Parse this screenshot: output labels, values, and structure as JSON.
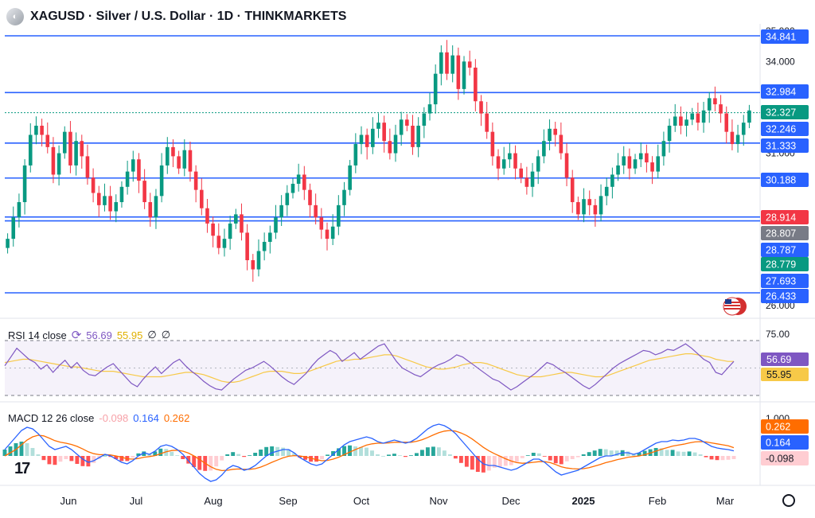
{
  "header": {
    "title": "XAGUSD · Silver / U.S. Dollar · 1D · THINKMARKETS",
    "symbol_icon": "silver-coin-icon"
  },
  "rsi": {
    "label": "RSI 14 close",
    "value": "56.69",
    "ma_value": "55.95",
    "extra1": "∅",
    "extra2": "∅",
    "axis_upper": "75.00",
    "badge_value": "56.69",
    "badge_ma": "55.95",
    "line_color": "#7e57c2",
    "ma_color": "#f7c948"
  },
  "macd": {
    "label": "MACD 12 26 close",
    "hist": "-0.098",
    "macd": "0.164",
    "signal": "0.262",
    "axis_top": "1.000",
    "macd_color": "#2962ff",
    "signal_color": "#ff6d00"
  },
  "chart_data": {
    "type": "candlestick",
    "price_axis_ticks": [
      "35.000",
      "34.000",
      "31.000",
      "26.000"
    ],
    "levels": [
      {
        "value": 34.841,
        "label": "34.841",
        "color": "#2962ff",
        "text_color": "#ffffff"
      },
      {
        "value": 32.984,
        "label": "32.984",
        "color": "#2962ff",
        "text_color": "#ffffff"
      },
      {
        "value": 32.327,
        "label": "32.327",
        "color": "#089981",
        "text_color": "#ffffff"
      },
      {
        "value": 32.246,
        "label": "32.246",
        "color": "#2962ff",
        "text_color": "#ffffff"
      },
      {
        "value": 31.333,
        "label": "31.333",
        "color": "#2962ff",
        "text_color": "#ffffff"
      },
      {
        "value": 30.188,
        "label": "30.188",
        "color": "#2962ff",
        "text_color": "#ffffff"
      },
      {
        "value": 28.914,
        "label": "28.914",
        "color": "#f23645",
        "text_color": "#ffffff"
      },
      {
        "value": 28.807,
        "label": "28.807",
        "color": "#787b86",
        "text_color": "#ffffff"
      },
      {
        "value": 28.787,
        "label": "28.787",
        "color": "#2962ff",
        "text_color": "#ffffff"
      },
      {
        "value": 28.779,
        "label": "28.779",
        "color": "#089981",
        "text_color": "#ffffff"
      },
      {
        "value": 27.693,
        "label": "27.693",
        "color": "#2962ff",
        "text_color": "#ffffff"
      },
      {
        "value": 26.433,
        "label": "26.433",
        "color": "#2962ff",
        "text_color": "#ffffff"
      }
    ],
    "drawn_levels": [
      34.841,
      32.984,
      32.327,
      31.333,
      30.188,
      28.914,
      28.787,
      26.433
    ],
    "x_labels": [
      {
        "label": "Jun",
        "bold": false
      },
      {
        "label": "Jul",
        "bold": false
      },
      {
        "label": "Aug",
        "bold": false
      },
      {
        "label": "Sep",
        "bold": false
      },
      {
        "label": "Oct",
        "bold": false
      },
      {
        "label": "Nov",
        "bold": false
      },
      {
        "label": "Dec",
        "bold": false
      },
      {
        "label": "2025",
        "bold": true
      },
      {
        "label": "Feb",
        "bold": false
      },
      {
        "label": "Mar",
        "bold": false
      }
    ],
    "closes": [
      28.2,
      28.9,
      29.4,
      30.6,
      31.6,
      31.9,
      31.6,
      31.2,
      30.3,
      31.0,
      31.7,
      30.6,
      31.4,
      30.9,
      30.2,
      29.7,
      29.3,
      29.6,
      29.1,
      29.4,
      29.9,
      30.4,
      30.8,
      30.1,
      29.4,
      28.9,
      29.6,
      30.6,
      31.2,
      30.9,
      30.5,
      31.1,
      30.4,
      29.8,
      29.2,
      28.7,
      28.3,
      27.9,
      28.2,
      28.7,
      29.0,
      28.4,
      27.5,
      27.2,
      27.8,
      28.1,
      28.4,
      28.9,
      29.3,
      29.7,
      30.0,
      30.3,
      29.8,
      29.3,
      28.9,
      28.5,
      28.2,
      28.6,
      29.3,
      29.8,
      30.6,
      31.3,
      31.6,
      31.2,
      31.8,
      32.0,
      31.4,
      31.0,
      31.6,
      32.1,
      31.9,
      31.2,
      31.9,
      32.3,
      32.6,
      33.6,
      34.3,
      33.6,
      34.2,
      33.1,
      34.0,
      33.8,
      32.7,
      32.3,
      31.7,
      30.9,
      30.5,
      30.8,
      31.0,
      30.5,
      30.2,
      29.9,
      30.4,
      30.9,
      31.4,
      31.8,
      31.6,
      31.0,
      30.2,
      29.4,
      29.0,
      29.5,
      29.3,
      29.0,
      29.6,
      29.9,
      30.3,
      30.6,
      30.9,
      30.5,
      30.8,
      31.0,
      30.7,
      30.4,
      30.9,
      31.4,
      31.9,
      32.2,
      31.9,
      32.1,
      32.3,
      32.0,
      32.4,
      32.8,
      32.6,
      32.3,
      31.7,
      31.3,
      31.6,
      32.0,
      32.4
    ],
    "rsi_values": [
      52,
      60,
      68,
      63,
      58,
      55,
      49,
      53,
      46,
      52,
      57,
      50,
      55,
      48,
      44,
      43,
      47,
      51,
      54,
      48,
      42,
      36,
      33,
      40,
      46,
      51,
      45,
      50,
      55,
      58,
      52,
      47,
      43,
      38,
      34,
      31,
      30,
      35,
      40,
      44,
      48,
      50,
      53,
      56,
      52,
      47,
      42,
      38,
      35,
      40,
      45,
      52,
      58,
      62,
      66,
      63,
      56,
      60,
      64,
      58,
      62,
      66,
      70,
      72,
      64,
      56,
      50,
      47,
      44,
      42,
      46,
      50,
      53,
      55,
      58,
      62,
      60,
      56,
      52,
      48,
      44,
      40,
      38,
      34,
      30,
      33,
      37,
      41,
      45,
      50,
      55,
      53,
      49,
      46,
      42,
      38,
      34,
      31,
      35,
      40,
      45,
      50,
      54,
      57,
      60,
      63,
      66,
      65,
      62,
      64,
      67,
      66,
      69,
      72,
      68,
      63,
      58,
      55,
      46,
      44,
      50,
      56
    ],
    "rsi_ma": [
      55,
      56,
      57,
      58,
      58,
      57,
      56,
      55,
      54,
      53,
      52,
      51,
      51,
      50,
      49,
      48,
      47,
      47,
      47,
      46,
      45,
      44,
      43,
      42,
      42,
      42,
      42,
      43,
      44,
      45,
      46,
      46,
      45,
      44,
      42,
      40,
      38,
      37,
      37,
      38,
      40,
      42,
      44,
      46,
      47,
      47,
      47,
      46,
      45,
      45,
      46,
      48,
      50,
      52,
      54,
      56,
      57,
      57,
      58,
      58,
      59,
      60,
      61,
      62,
      62,
      61,
      59,
      57,
      55,
      53,
      51,
      50,
      49,
      49,
      50,
      51,
      53,
      54,
      55,
      55,
      54,
      52,
      50,
      48,
      46,
      44,
      43,
      42,
      42,
      42,
      43,
      44,
      45,
      46,
      46,
      45,
      44,
      43,
      42,
      42,
      43,
      45,
      47,
      49,
      51,
      53,
      55,
      57,
      58,
      59,
      60,
      61,
      62,
      63,
      63,
      62,
      61,
      60,
      58,
      57,
      56,
      56
    ],
    "macd_line": [
      0.2,
      0.4,
      0.6,
      0.8,
      0.9,
      0.85,
      0.7,
      0.5,
      0.3,
      0.2,
      0.25,
      0.3,
      0.2,
      0.05,
      -0.1,
      -0.2,
      -0.15,
      -0.05,
      0.05,
      0.0,
      -0.1,
      -0.2,
      -0.25,
      -0.15,
      0.0,
      0.1,
      0.05,
      0.15,
      0.3,
      0.35,
      0.3,
      0.2,
      0.05,
      -0.15,
      -0.35,
      -0.55,
      -0.7,
      -0.8,
      -0.75,
      -0.6,
      -0.4,
      -0.3,
      -0.35,
      -0.45,
      -0.4,
      -0.3,
      -0.15,
      0.0,
      0.1,
      0.15,
      0.2,
      0.2,
      0.1,
      -0.05,
      -0.15,
      -0.25,
      -0.3,
      -0.25,
      -0.1,
      0.05,
      0.2,
      0.35,
      0.45,
      0.5,
      0.55,
      0.6,
      0.55,
      0.45,
      0.4,
      0.45,
      0.5,
      0.45,
      0.4,
      0.45,
      0.55,
      0.7,
      0.85,
      0.95,
      1.0,
      0.95,
      0.85,
      0.7,
      0.5,
      0.3,
      0.1,
      -0.1,
      -0.25,
      -0.3,
      -0.3,
      -0.35,
      -0.4,
      -0.45,
      -0.4,
      -0.3,
      -0.2,
      -0.1,
      -0.1,
      -0.2,
      -0.35,
      -0.5,
      -0.6,
      -0.55,
      -0.5,
      -0.45,
      -0.35,
      -0.25,
      -0.15,
      -0.05,
      0.0,
      0.0,
      0.05,
      0.1,
      0.1,
      0.05,
      0.1,
      0.2,
      0.3,
      0.4,
      0.45,
      0.45,
      0.5,
      0.48,
      0.5,
      0.55,
      0.55,
      0.5,
      0.4,
      0.3,
      0.25,
      0.22,
      0.2,
      0.16
    ],
    "macd_signal": [
      0.0,
      0.1,
      0.2,
      0.35,
      0.5,
      0.6,
      0.65,
      0.63,
      0.56,
      0.48,
      0.43,
      0.4,
      0.36,
      0.3,
      0.22,
      0.13,
      0.07,
      0.04,
      0.04,
      0.03,
      0.0,
      -0.04,
      -0.09,
      -0.1,
      -0.08,
      -0.04,
      -0.02,
      0.01,
      0.07,
      0.13,
      0.17,
      0.18,
      0.15,
      0.09,
      0.0,
      -0.11,
      -0.23,
      -0.34,
      -0.42,
      -0.46,
      -0.45,
      -0.42,
      -0.41,
      -0.42,
      -0.42,
      -0.4,
      -0.35,
      -0.28,
      -0.2,
      -0.13,
      -0.06,
      -0.01,
      0.01,
      0.0,
      -0.03,
      -0.07,
      -0.12,
      -0.15,
      -0.14,
      -0.1,
      -0.04,
      0.04,
      0.12,
      0.2,
      0.27,
      0.34,
      0.38,
      0.4,
      0.4,
      0.41,
      0.43,
      0.43,
      0.43,
      0.43,
      0.46,
      0.51,
      0.58,
      0.66,
      0.73,
      0.78,
      0.8,
      0.78,
      0.72,
      0.64,
      0.53,
      0.4,
      0.27,
      0.16,
      0.07,
      -0.01,
      -0.09,
      -0.16,
      -0.21,
      -0.23,
      -0.22,
      -0.2,
      -0.18,
      -0.18,
      -0.21,
      -0.27,
      -0.34,
      -0.38,
      -0.4,
      -0.41,
      -0.4,
      -0.37,
      -0.32,
      -0.27,
      -0.21,
      -0.17,
      -0.12,
      -0.08,
      -0.04,
      -0.02,
      0.0,
      0.04,
      0.09,
      0.15,
      0.21,
      0.26,
      0.31,
      0.34,
      0.37,
      0.41,
      0.44,
      0.45,
      0.44,
      0.41,
      0.38,
      0.35,
      0.32,
      0.26
    ]
  }
}
